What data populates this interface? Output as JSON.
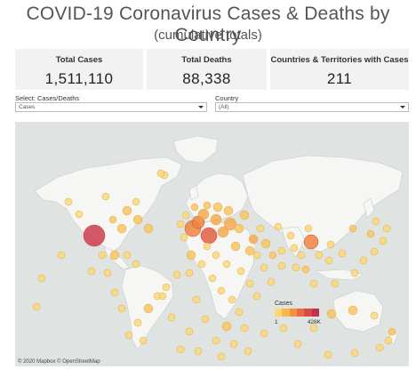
{
  "header": {
    "title": "COVID-19 Coronavirus Cases & Deaths by Country",
    "subtitle": "(cumulative totals)"
  },
  "kpis": {
    "total_cases_label": "Total Cases",
    "total_cases_value": "1,511,110",
    "total_deaths_label": "Total Deaths",
    "total_deaths_value": "88,338",
    "countries_label": "Countries & Territories with Cases",
    "countries_value": "211"
  },
  "filters": {
    "measure_label": "Select: Cases/Deaths",
    "measure_value": "Cases",
    "country_label": "Country",
    "country_value": "(All)"
  },
  "map": {
    "attribution": "© 2020 Mapbox © OpenStreetMap",
    "legend_title": "Cases",
    "legend_min": "1",
    "legend_max": "428K",
    "legend_colors": [
      "#fbd876",
      "#f8b74e",
      "#f39242",
      "#ea6b3f",
      "#d94a48",
      "#c33053"
    ]
  }
}
